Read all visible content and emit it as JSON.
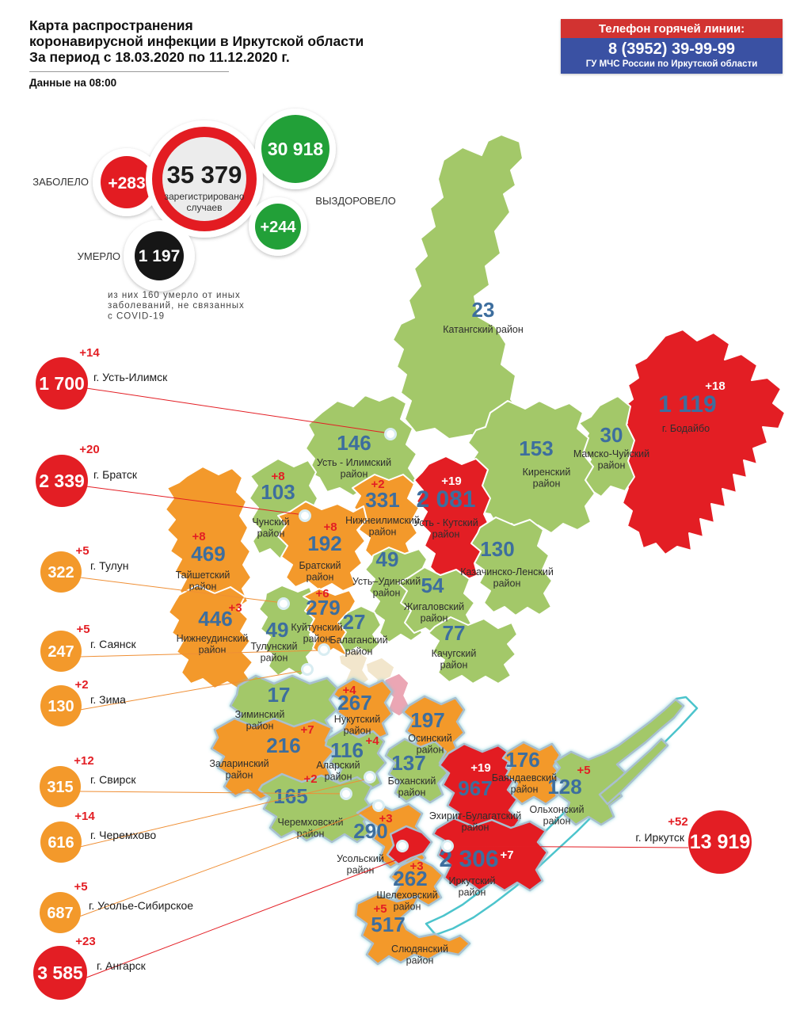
{
  "header": {
    "title": "Карта распространения|коронавирусной инфекции в Иркутской области|За период с 18.03.2020 по 11.12.2020 г.",
    "updated": "Данные на 08:00"
  },
  "hotline": {
    "title": "Телефон горячей линии:",
    "phone": "8 (3952) 39-99-99",
    "org": "ГУ МЧС России по Иркутской области"
  },
  "totals": {
    "sick_label": "ЗАБОЛЕЛО",
    "sick_delta": "+283",
    "registered": "35 379",
    "registered_caption": "зарегистрировано|случаев",
    "recovered": "30 918",
    "recovered_delta": "+244",
    "recovered_label": "ВЫЗДОРОВЕЛО",
    "deaths_label": "УМЕРЛО",
    "deaths": "1 197",
    "deaths_note": "из них 160 умерло от иных|заболеваний, не связанных|с COVID-19"
  },
  "palette": {
    "low_green": "#a3c869",
    "mid_orange": "#f3992b",
    "high_red": "#e31e24",
    "number_blue": "#3d6e9e",
    "delta_red": "#e31e24",
    "recovered_green": "#21a038",
    "deaths_black": "#151515",
    "hotline_red": "#d23331",
    "hotline_blue": "#3a51a3",
    "lake_teal": "#4cc4cc"
  },
  "cities": [
    {
      "name": "г. Усть-Илимск",
      "value": "1 700",
      "delta": "+14",
      "level": "red"
    },
    {
      "name": "г. Братск",
      "value": "2 339",
      "delta": "+20",
      "level": "red"
    },
    {
      "name": "г. Тулун",
      "value": "322",
      "delta": "+5",
      "level": "orange"
    },
    {
      "name": "г. Саянск",
      "value": "247",
      "delta": "+5",
      "level": "orange"
    },
    {
      "name": "г. Зима",
      "value": "130",
      "delta": "+2",
      "level": "orange"
    },
    {
      "name": "г. Свирск",
      "value": "315",
      "delta": "+12",
      "level": "orange"
    },
    {
      "name": "г. Черемхово",
      "value": "616",
      "delta": "+14",
      "level": "orange"
    },
    {
      "name": "г. Усолье-Сибирское",
      "value": "687",
      "delta": "+5",
      "level": "orange"
    },
    {
      "name": "г. Ангарск",
      "value": "3 585",
      "delta": "+23",
      "level": "red"
    },
    {
      "name": "г. Иркутск",
      "value": "13 919",
      "delta": "+52",
      "level": "red"
    }
  ],
  "regions": [
    {
      "name": "Катангский район",
      "value": "23",
      "level": "green"
    },
    {
      "name": "г. Бодайбо",
      "value": "1 119",
      "delta": "+18",
      "level": "red"
    },
    {
      "name": "Мамско-Чуйский|район",
      "value": "30",
      "level": "green"
    },
    {
      "name": "Киренский|район",
      "value": "153",
      "level": "green"
    },
    {
      "name": "Усть - Илимский|район",
      "value": "146",
      "level": "green"
    },
    {
      "name": "Усть - Кутский|район",
      "value": "2 081",
      "delta": "+19",
      "level": "red"
    },
    {
      "name": "Чунский|район",
      "value": "103",
      "delta": "+8",
      "level": "green"
    },
    {
      "name": "Нижнеилимский|район",
      "value": "331",
      "delta": "+2",
      "level": "orange"
    },
    {
      "name": "Тайшетский|район",
      "value": "469",
      "delta": "+8",
      "level": "orange"
    },
    {
      "name": "Братский|район",
      "value": "192",
      "delta": "+8",
      "level": "orange"
    },
    {
      "name": "Усть–Удинский|район",
      "value": "49",
      "level": "green"
    },
    {
      "name": "Казачинско-Ленский|район",
      "value": "130",
      "level": "green"
    },
    {
      "name": "Жигаловский|район",
      "value": "54",
      "level": "green"
    },
    {
      "name": "Качугский|район",
      "value": "77",
      "level": "green"
    },
    {
      "name": "Нижнеудинский|район",
      "value": "446",
      "delta": "+3",
      "level": "orange"
    },
    {
      "name": "Тулунский|район",
      "value": "49",
      "level": "green"
    },
    {
      "name": "Куйтунский|район",
      "value": "279",
      "delta": "+6",
      "level": "orange"
    },
    {
      "name": "Балаганский|район",
      "value": "27",
      "level": "green"
    },
    {
      "name": "Зиминский|район",
      "value": "17",
      "level": "green"
    },
    {
      "name": "Нукутский|район",
      "value": "267",
      "delta": "+4",
      "level": "orange"
    },
    {
      "name": "Осинский|район",
      "value": "197",
      "level": "orange"
    },
    {
      "name": "Заларинский|район",
      "value": "216",
      "delta": "+7",
      "level": "orange"
    },
    {
      "name": "Аларский|район",
      "value": "116",
      "delta": "+4",
      "level": "green"
    },
    {
      "name": "Боханский|район",
      "value": "137",
      "level": "green"
    },
    {
      "name": "Эхирит-Булагатский|район",
      "value": "967",
      "delta": "+19",
      "level": "red"
    },
    {
      "name": "Баяндаевский|район",
      "value": "176",
      "level": "orange"
    },
    {
      "name": "Ольхонский|район",
      "value": "128",
      "delta": "+5",
      "level": "green"
    },
    {
      "name": "Черемховский|район",
      "value": "165",
      "delta": "+2",
      "level": "green"
    },
    {
      "name": "Усольский|район",
      "value": "290",
      "delta": "+3",
      "level": "orange"
    },
    {
      "name": "Иркутский|район",
      "value": "2 306",
      "delta": "+7",
      "level": "red"
    },
    {
      "name": "Шелеховский|район",
      "value": "262",
      "delta": "+3",
      "level": "orange"
    },
    {
      "name": "Слюдянский|район",
      "value": "517",
      "delta": "+5",
      "level": "orange"
    }
  ]
}
